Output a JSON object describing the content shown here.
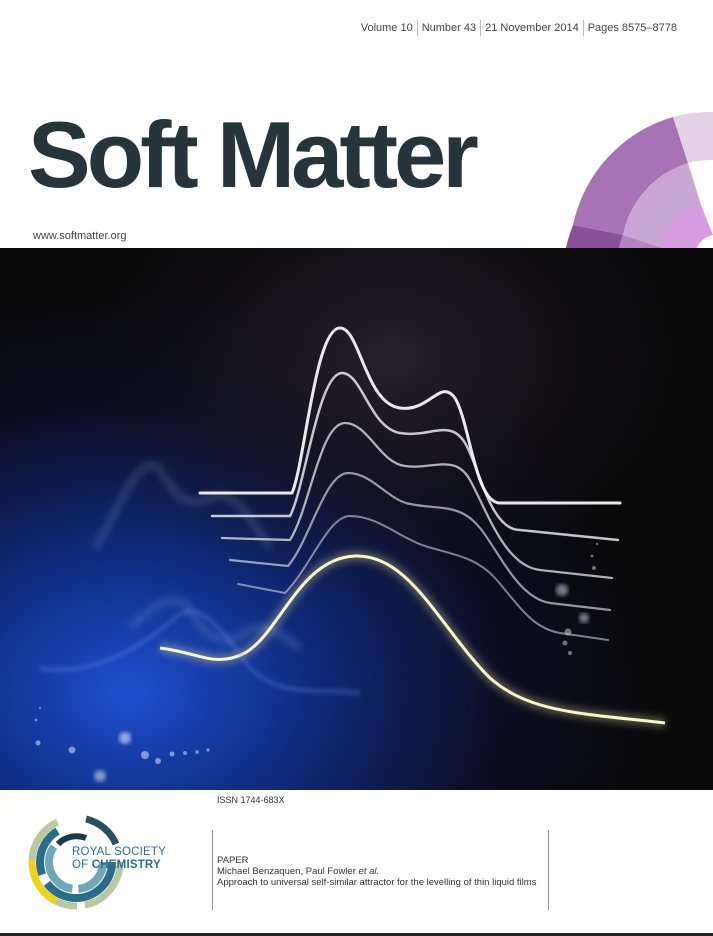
{
  "issue": {
    "volume": "Volume 10",
    "number": "Number 43",
    "date": "21 November 2014",
    "pages": "Pages 8575–8778"
  },
  "journal": {
    "title": "Soft Matter",
    "url": "www.softmatter.org"
  },
  "issn": "ISSN 1744-683X",
  "publisher": {
    "line1": "ROYAL SOCIETY",
    "line2_prefix": "OF",
    "line2_bold": "CHEMISTRY"
  },
  "article": {
    "type": "PAPER",
    "authors_main": "Michael Benzaquen, Paul Fowler",
    "authors_etal": "et al.",
    "title": "Approach to universal self-similar attractor for the levelling of thin liquid films"
  },
  "colors": {
    "title": "#26353b",
    "purple": "#8e4e9f",
    "rsc_blue": "#2c6f8c",
    "glow_yellow": "#f3eaa0"
  }
}
